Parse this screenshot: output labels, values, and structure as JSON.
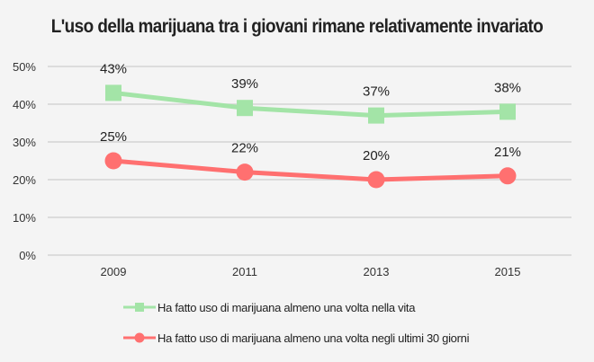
{
  "chart_data": {
    "type": "line",
    "title": "L'uso della marijuana tra i giovani rimane relativamente invariato",
    "categories": [
      "2009",
      "2011",
      "2013",
      "2015"
    ],
    "ylim": [
      0,
      50
    ],
    "yticks": [
      "0%",
      "10%",
      "20%",
      "30%",
      "40%",
      "50%"
    ],
    "grid": true,
    "legend_position": "bottom",
    "series": [
      {
        "name": "Ha fatto uso di marijuana almeno una volta nella vita",
        "values": [
          43,
          39,
          37,
          38
        ],
        "labels": [
          "43%",
          "39%",
          "37%",
          "38%"
        ],
        "color": "#a3e4a7",
        "marker": "square"
      },
      {
        "name": "Ha fatto uso di marijuana almeno una volta negli ultimi 30 giorni",
        "values": [
          25,
          22,
          20,
          21
        ],
        "labels": [
          "25%",
          "22%",
          "20%",
          "21%"
        ],
        "color": "#ff7070",
        "marker": "circle"
      }
    ]
  }
}
